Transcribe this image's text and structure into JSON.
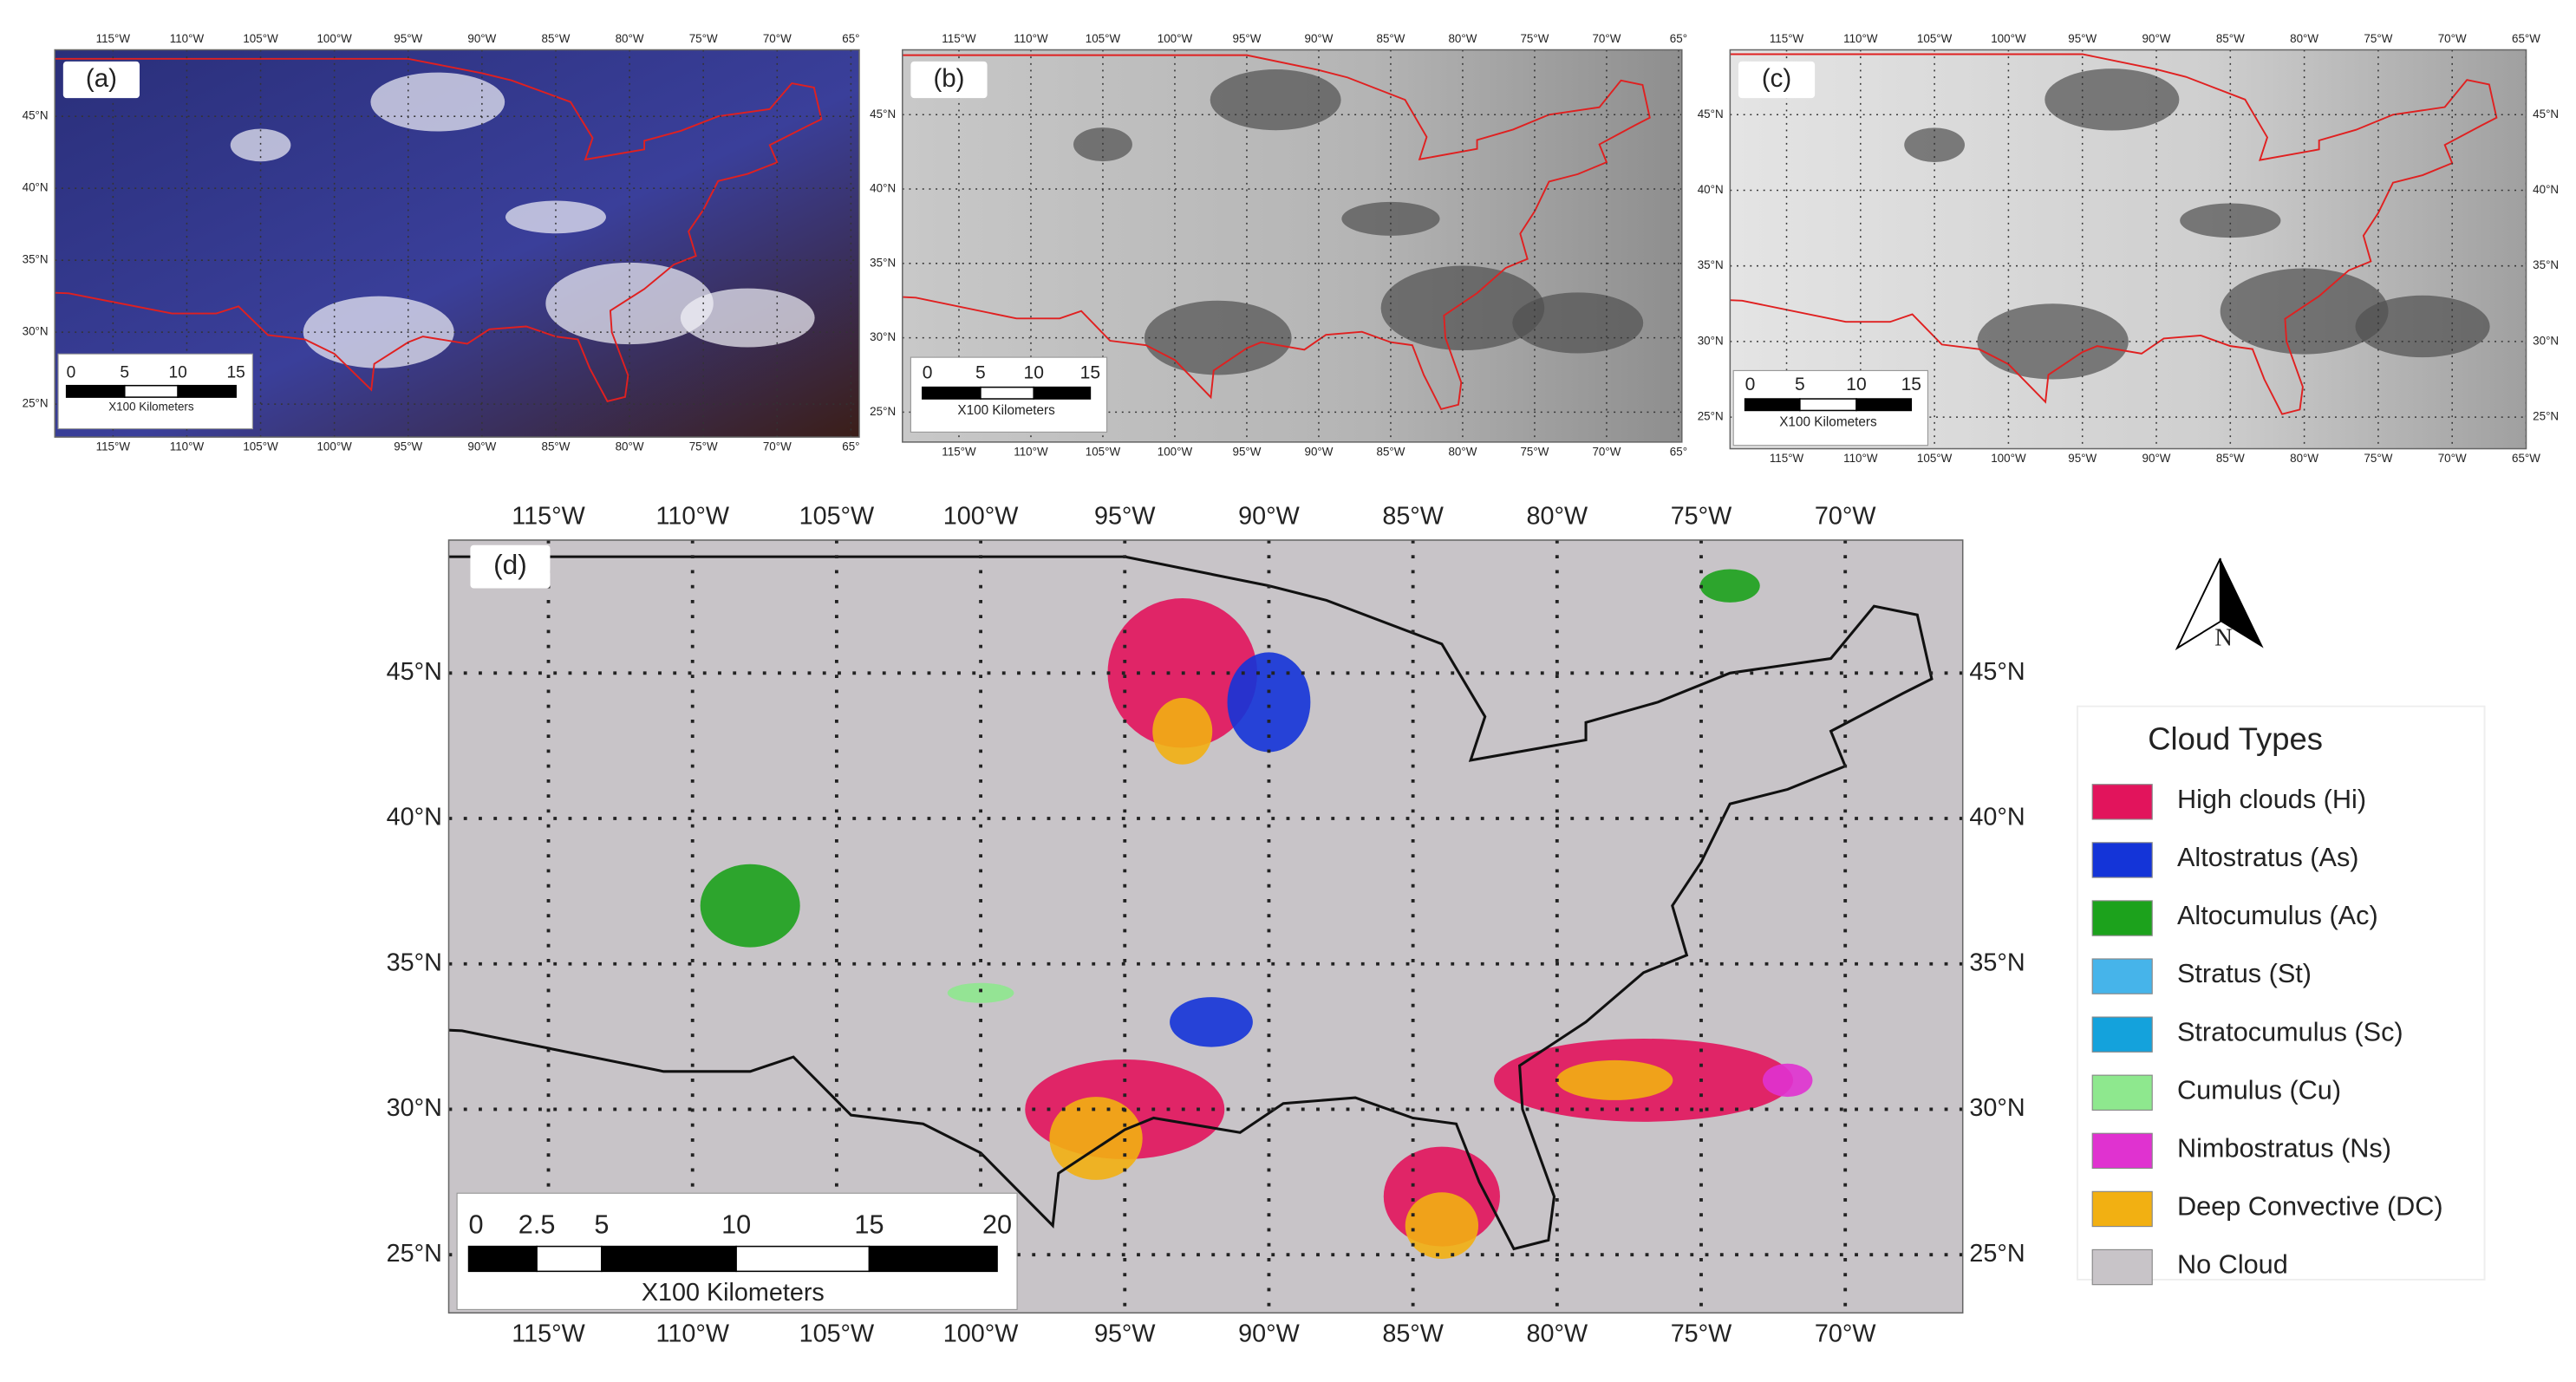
{
  "panels": [
    {
      "label": "(a)",
      "lon_labels": [
        "115°W",
        "110°W",
        "105°W",
        "100°W",
        "95°W",
        "90°W",
        "85°W",
        "80°W",
        "75°W",
        "70°W",
        "65°"
      ],
      "lat_labels": [
        "45°N",
        "40°N",
        "35°N",
        "30°N",
        "25°N"
      ],
      "scale_labels": [
        "0",
        "5",
        "10",
        "15"
      ],
      "scale_unit": "X100 Kilometers"
    },
    {
      "label": "(b)",
      "lon_labels": [
        "115°W",
        "110°W",
        "105°W",
        "100°W",
        "95°W",
        "90°W",
        "85°W",
        "80°W",
        "75°W",
        "70°W",
        "65°"
      ],
      "lat_labels": [
        "45°N",
        "40°N",
        "35°N",
        "30°N",
        "25°N"
      ],
      "scale_labels": [
        "0",
        "5",
        "10",
        "15"
      ],
      "scale_unit": "X100 Kilometers"
    },
    {
      "label": "(c)",
      "lon_labels": [
        "115°W",
        "110°W",
        "105°W",
        "100°W",
        "95°W",
        "90°W",
        "85°W",
        "80°W",
        "75°W",
        "70°W",
        "65°W"
      ],
      "lat_labels": [
        "45°N",
        "40°N",
        "35°N",
        "30°N",
        "25°N"
      ],
      "scale_labels": [
        "0",
        "5",
        "10",
        "15"
      ],
      "scale_unit": "X100 Kilometers"
    },
    {
      "label": "(d)",
      "lon_labels": [
        "115°W",
        "110°W",
        "105°W",
        "100°W",
        "95°W",
        "90°W",
        "85°W",
        "80°W",
        "75°W",
        "70°W"
      ],
      "lat_labels": [
        "45°N",
        "40°N",
        "35°N",
        "30°N",
        "25°N"
      ],
      "scale_labels": [
        "0",
        "2.5",
        "5",
        "10",
        "15",
        "20"
      ],
      "scale_unit": "X100 Kilometers"
    }
  ],
  "legend": {
    "title": "Cloud Types",
    "items": [
      {
        "label": "High clouds (Hi)",
        "color": "#e2145c"
      },
      {
        "label": "Altostratus (As)",
        "color": "#1434d8"
      },
      {
        "label": "Altocumulus (Ac)",
        "color": "#1ca21c"
      },
      {
        "label": "Stratus (St)",
        "color": "#46b4ea"
      },
      {
        "label": "Stratocumulus (Sc)",
        "color": "#14a2dc"
      },
      {
        "label": "Cumulus (Cu)",
        "color": "#8ee88e"
      },
      {
        "label": "Nimbostratus (Ns)",
        "color": "#e032d0"
      },
      {
        "label": "Deep Convective (DC)",
        "color": "#f2b012"
      },
      {
        "label": "No Cloud",
        "color": "#c8c4c8"
      }
    ]
  },
  "north_label": "N"
}
